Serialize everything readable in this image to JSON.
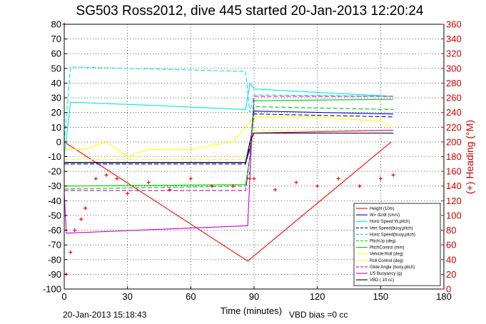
{
  "chart_data": {
    "type": "line",
    "title": "SG503 Ross2012, dive 445 started 20-Jan-2013 12:20:24",
    "xlabel": "Time (minutes)",
    "ylabel_right": "(+) Heading (°M)",
    "xlim": [
      0,
      180
    ],
    "ylim": [
      -100,
      80
    ],
    "ylim_right": [
      0,
      360
    ],
    "xticks": [
      "0",
      "30",
      "60",
      "90",
      "120",
      "150",
      "180"
    ],
    "yticks": [
      "80",
      "70",
      "60",
      "50",
      "40",
      "30",
      "20",
      "10",
      "0",
      "-10",
      "-20",
      "-30",
      "-40",
      "-50",
      "-60",
      "-70",
      "-80",
      "-90",
      "-100"
    ],
    "yticks_right": [
      "360",
      "340",
      "320",
      "300",
      "280",
      "260",
      "240",
      "220",
      "200",
      "180",
      "160",
      "140",
      "120",
      "100",
      "80",
      "60",
      "40",
      "20",
      "0"
    ],
    "grid": true,
    "legend_position": "bottom-right",
    "footer_left": "20-Jan-2013 15:18:43",
    "footer_right": "VBD bias =0 cc",
    "series": [
      {
        "name": "Height (10m)",
        "color": "#ff0000",
        "style": "solid",
        "x": [
          0,
          87,
          155
        ],
        "y": [
          0,
          -81,
          0
        ]
      },
      {
        "name": "W= dz/dt (cm/s)",
        "color": "#0000cc",
        "style": "solid",
        "x": [
          0,
          86,
          88,
          90,
          156
        ],
        "y": [
          -14,
          -14,
          -5,
          21,
          19
        ]
      },
      {
        "name": "Horiz Speed W,pitch)",
        "color": "#00e5e5",
        "style": "solid",
        "x": [
          0,
          3,
          40,
          86,
          88,
          90,
          156
        ],
        "y": [
          -10,
          27,
          25,
          22,
          40,
          36,
          31
        ]
      },
      {
        "name": "Vert Speed(buoy,pitch)",
        "color": "#0000cc",
        "style": "dashed",
        "x": [
          0,
          86,
          88,
          90,
          156
        ],
        "y": [
          -15,
          -15,
          -2,
          19,
          17
        ]
      },
      {
        "name": "Horiz Speed(buoy,pitch)",
        "color": "#00e5e5",
        "style": "dashed",
        "x": [
          0,
          3,
          86,
          88,
          90,
          156
        ],
        "y": [
          0,
          51,
          48,
          20,
          32,
          31
        ]
      },
      {
        "name": "PitchUp (deg)",
        "color": "#00cc00",
        "style": "dashed",
        "x": [
          0,
          86,
          88,
          90,
          156
        ],
        "y": [
          -32,
          -30,
          -20,
          24,
          22
        ]
      },
      {
        "name": "PitchControl (mm)",
        "color": "#00cc00",
        "style": "solid",
        "x": [
          0,
          86,
          88,
          90,
          156
        ],
        "y": [
          -30,
          -29,
          -10,
          28,
          29
        ]
      },
      {
        "name": "Vehicle Roll (deg)",
        "color": "#ffff00",
        "style": "solid",
        "x": [
          0,
          10,
          20,
          30,
          40,
          60,
          80,
          90,
          120,
          150,
          156
        ],
        "y": [
          -5,
          -5,
          0,
          -10,
          -5,
          -5,
          0,
          17,
          17,
          14,
          10
        ]
      },
      {
        "name": "Roll Control (deg)",
        "color": "#ffff00",
        "style": "dashed",
        "x": [
          0,
          86,
          90,
          156
        ],
        "y": [
          -12,
          -12,
          8,
          8
        ]
      },
      {
        "name": "Glide Angle (buoy,pitch)",
        "color": "#cc00cc",
        "style": "dashed",
        "x": [
          0,
          86,
          88,
          90,
          156
        ],
        "y": [
          -33,
          -33,
          -10,
          31,
          31
        ]
      },
      {
        "name": "1/5 Buoyancy (g)",
        "color": "#cc00cc",
        "style": "solid",
        "x": [
          0,
          1,
          86,
          87,
          89,
          156
        ],
        "y": [
          -35,
          -62,
          -57,
          -57,
          6,
          8
        ]
      },
      {
        "name": "VBD ( 10 cc)",
        "color": "#000000",
        "style": "solid",
        "x": [
          0,
          86,
          88,
          90,
          156
        ],
        "y": [
          -14,
          -14,
          0,
          6,
          6
        ]
      },
      {
        "name": "Heading",
        "color": "#ff0000",
        "style": "markers",
        "axis": "right",
        "x": [
          0,
          1,
          3,
          5,
          8,
          10,
          15,
          20,
          25,
          30,
          40,
          50,
          60,
          70,
          80,
          88,
          90,
          100,
          110,
          120,
          130,
          140,
          150,
          156
        ],
        "y": [
          360,
          20,
          50,
          80,
          95,
          110,
          150,
          155,
          150,
          130,
          145,
          135,
          150,
          140,
          140,
          150,
          150,
          135,
          145,
          140,
          150,
          140,
          150,
          155
        ]
      }
    ]
  }
}
